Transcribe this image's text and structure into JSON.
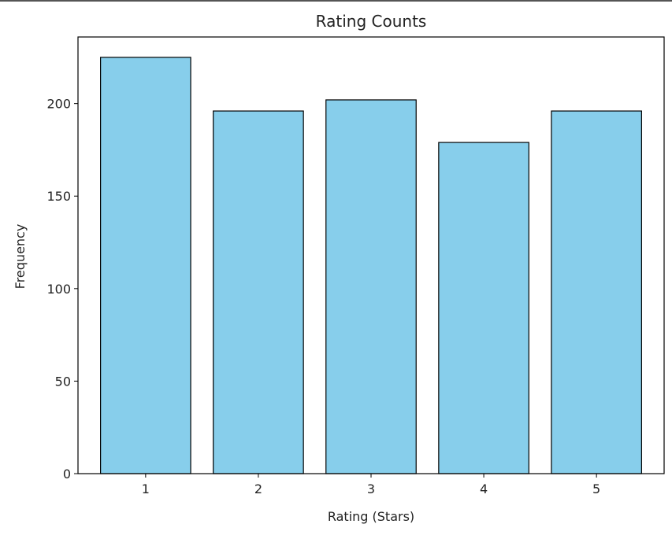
{
  "chart_data": {
    "type": "bar",
    "title": "Rating Counts",
    "xlabel": "Rating (Stars)",
    "ylabel": "Frequency",
    "categories": [
      "1",
      "2",
      "3",
      "4",
      "5"
    ],
    "values": [
      225,
      196,
      202,
      179,
      196
    ],
    "ylim": [
      0,
      236
    ],
    "yticks": [
      0,
      50,
      100,
      150,
      200
    ],
    "grid": false,
    "legend": "none",
    "bar_color": "#87ceeb",
    "edge_color": "#000000"
  }
}
